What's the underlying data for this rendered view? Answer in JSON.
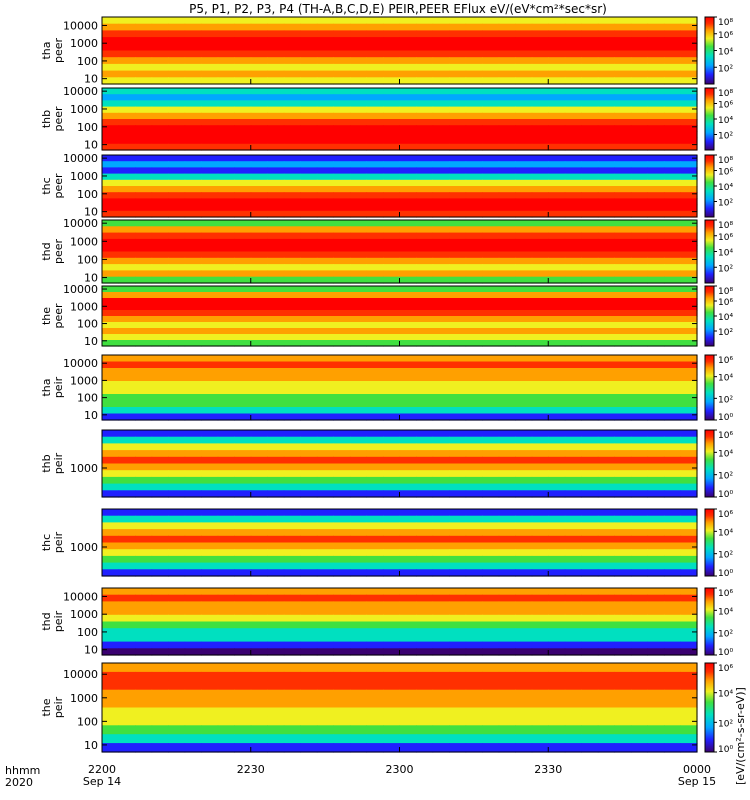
{
  "title": "P5, P1, P2, P3, P4 (TH-A,B,C,D,E) PEIR,PEER EFlux eV/(eV*cm²*sec*sr)",
  "x_axis": {
    "row_label_1": "hhmm",
    "row_label_2": "2020",
    "ticks": [
      {
        "time": "2200",
        "date": "Sep 14"
      },
      {
        "time": "2230",
        "date": ""
      },
      {
        "time": "2300",
        "date": ""
      },
      {
        "time": "2330",
        "date": ""
      },
      {
        "time": "0000",
        "date": "Sep 15"
      }
    ]
  },
  "colorbar": {
    "ticks_high": [
      "10⁸",
      "10⁶",
      "10⁴",
      "10²"
    ],
    "ticks_low": [
      "10⁶",
      "10⁴",
      "10²",
      "10⁰"
    ],
    "unit_label": "[eV/(cm²-s-sr-eV)]"
  },
  "chart_data": {
    "type": "heatmap",
    "title": "P5, P1, P2, P3, P4 (TH-A,B,C,D,E) PEIR,PEER EFlux eV/(eV*cm²*sec*sr)",
    "x_range": [
      "2020-09-14 22:00",
      "2020-09-15 00:00"
    ],
    "z_unit": "eV/(cm²-s-sr-eV)",
    "color_scale": [
      "#3a0070",
      "#2020ff",
      "#00a8ff",
      "#00e0c0",
      "#40e040",
      "#f0f020",
      "#ffa000",
      "#ff3000",
      "#ff0000"
    ],
    "panels": [
      {
        "probe": "tha",
        "species": "peer",
        "label": [
          "tha",
          "peer"
        ],
        "yscale": "log",
        "ylim": [
          5,
          30000
        ],
        "yticks": [
          "10000",
          "1000",
          "100",
          "10"
        ],
        "zlim": [
          1,
          100000000
        ],
        "colorbar_ticks": [
          "10⁸",
          "10⁶",
          "10⁴",
          "10²"
        ]
      },
      {
        "probe": "thb",
        "species": "peer",
        "label": [
          "thb",
          "peer"
        ],
        "yscale": "log",
        "ylim": [
          5,
          15000
        ],
        "yticks": [
          "10000",
          "1000",
          "100",
          "10"
        ],
        "zlim": [
          1,
          100000000
        ],
        "colorbar_ticks": [
          "10⁸",
          "10⁶",
          "10⁴",
          "10²"
        ]
      },
      {
        "probe": "thc",
        "species": "peer",
        "label": [
          "thc",
          "peer"
        ],
        "yscale": "log",
        "ylim": [
          5,
          15000
        ],
        "yticks": [
          "10000",
          "1000",
          "100",
          "10"
        ],
        "zlim": [
          1,
          100000000
        ],
        "colorbar_ticks": [
          "10⁸",
          "10⁶",
          "10⁴",
          "10²"
        ]
      },
      {
        "probe": "thd",
        "species": "peer",
        "label": [
          "thd",
          "peer"
        ],
        "yscale": "log",
        "ylim": [
          5,
          15000
        ],
        "yticks": [
          "10000",
          "1000",
          "100",
          "10"
        ],
        "zlim": [
          1,
          100000000
        ],
        "colorbar_ticks": [
          "10⁸",
          "10⁶",
          "10⁴",
          "10²"
        ]
      },
      {
        "probe": "the",
        "species": "peer",
        "label": [
          "the",
          "peer"
        ],
        "yscale": "log",
        "ylim": [
          5,
          15000
        ],
        "yticks": [
          "10000",
          "1000",
          "100",
          "10"
        ],
        "zlim": [
          1,
          100000000
        ],
        "colorbar_ticks": [
          "10⁸",
          "10⁶",
          "10⁴",
          "10²"
        ]
      },
      {
        "probe": "tha",
        "species": "peir",
        "label": [
          "tha",
          "peir"
        ],
        "yscale": "log",
        "ylim": [
          5,
          30000
        ],
        "yticks": [
          "10000",
          "1000",
          "100",
          "10"
        ],
        "zlim": [
          1,
          1000000
        ],
        "colorbar_ticks": [
          "10⁶",
          "10⁴",
          "10²",
          "10⁰"
        ]
      },
      {
        "probe": "thb",
        "species": "peir",
        "label": [
          "thb",
          "peir"
        ],
        "yscale": "log",
        "ylim": [
          150,
          12000
        ],
        "yticks": [
          "1000"
        ],
        "zlim": [
          1,
          1000000
        ],
        "colorbar_ticks": [
          "10⁶",
          "10⁴",
          "10²",
          "10⁰"
        ]
      },
      {
        "probe": "thc",
        "species": "peir",
        "label": [
          "thc",
          "peir"
        ],
        "yscale": "log",
        "ylim": [
          150,
          12000
        ],
        "yticks": [
          "1000"
        ],
        "zlim": [
          1,
          1000000
        ],
        "colorbar_ticks": [
          "10⁶",
          "10⁴",
          "10²",
          "10⁰"
        ]
      },
      {
        "probe": "thd",
        "species": "peir",
        "label": [
          "thd",
          "peir"
        ],
        "yscale": "log",
        "ylim": [
          5,
          30000
        ],
        "yticks": [
          "10000",
          "1000",
          "100",
          "10"
        ],
        "zlim": [
          1,
          1000000
        ],
        "colorbar_ticks": [
          "10⁶",
          "10⁴",
          "10²",
          "10⁰"
        ]
      },
      {
        "probe": "the",
        "species": "peir",
        "label": [
          "the",
          "peir"
        ],
        "yscale": "log",
        "ylim": [
          5,
          30000
        ],
        "yticks": [
          "10000",
          "1000",
          "100",
          "10"
        ],
        "zlim": [
          1,
          1000000
        ],
        "colorbar_ticks": [
          "10⁶",
          "10⁴",
          "10²",
          "10⁰"
        ]
      }
    ]
  }
}
